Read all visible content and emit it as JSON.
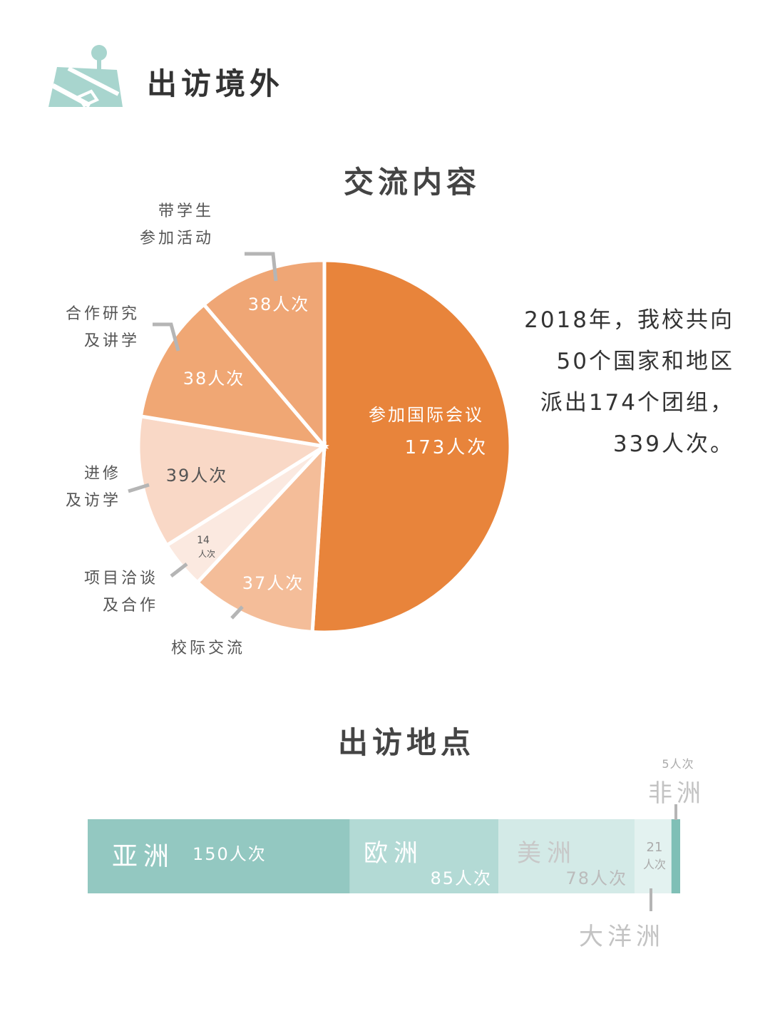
{
  "page": {
    "title": "出访境外"
  },
  "summary": {
    "lines": [
      "2018年，我校共向",
      "50个国家和地区",
      "派出174个团组，",
      "339人次。"
    ]
  },
  "colors": {
    "accent_orange": "#E8843B",
    "teal": "#93C8C1",
    "icon_teal": "#A8D5CE"
  },
  "chart_data": [
    {
      "type": "pie",
      "title": "交流内容",
      "unit": "人次",
      "slices": [
        {
          "label": "参加国际会议",
          "value": 173,
          "value_label": "173人次",
          "color": "#E8843B"
        },
        {
          "label": "校际交流",
          "value": 37,
          "value_label": "37人次",
          "color": "#F4BD99"
        },
        {
          "label": "项目洽谈及合作",
          "value": 14,
          "value_label_top": "14",
          "value_label_bottom": "人次",
          "color": "#FBE9E0"
        },
        {
          "label": "进修及访学",
          "value": 39,
          "value_label": "39人次",
          "color": "#F9D8C6"
        },
        {
          "label": "合作研究及讲学",
          "value": 38,
          "value_label": "38人次",
          "color": "#F0A774"
        },
        {
          "label": "带学生参加活动",
          "value": 38,
          "value_label": "38人次",
          "color": "#EFA675"
        }
      ],
      "category_labels": {
        "conference_line1": "参加国际会议",
        "exchange": "校际交流",
        "project": "项目洽谈\n及合作",
        "study": "进修\n及访学",
        "research": "合作研究\n及讲学",
        "students": "带学生\n参加活动"
      }
    },
    {
      "type": "bar",
      "orientation": "horizontal-stacked",
      "title": "出访地点",
      "unit": "人次",
      "categories": [
        "亚洲",
        "欧洲",
        "美洲",
        "大洋洲",
        "非洲"
      ],
      "values": [
        150,
        85,
        78,
        21,
        5
      ],
      "value_labels": [
        "150人次",
        "85人次",
        "78人次",
        "21人次",
        "5人次"
      ],
      "colors": [
        "#93C8C1",
        "#B3DAD5",
        "#D3EAE7",
        "#E3F2F0",
        "#7FBFB6"
      ]
    }
  ]
}
